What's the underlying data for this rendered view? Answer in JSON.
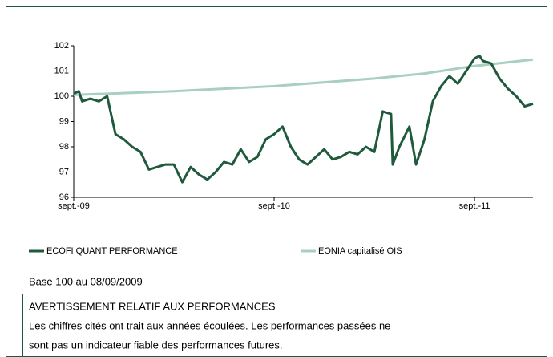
{
  "chart_data": {
    "type": "line",
    "xlim": [
      0,
      27.5
    ],
    "xticks": [
      {
        "value": 0,
        "label": "sept.-09"
      },
      {
        "value": 12,
        "label": "sept.-10"
      },
      {
        "value": 24,
        "label": "sept.-11"
      }
    ],
    "ylim": [
      96,
      102
    ],
    "yticks": [
      96,
      97,
      98,
      99,
      100,
      101,
      102
    ],
    "series": [
      {
        "name": "ECOFI QUANT PERFORMANCE",
        "color": "#1f5a3c",
        "x": [
          0,
          0.3,
          0.5,
          1,
          1.5,
          2,
          2.5,
          3,
          3.5,
          4,
          4.5,
          5,
          5.5,
          6,
          6.5,
          7,
          7.5,
          8,
          8.5,
          9,
          9.5,
          10,
          10.5,
          11,
          11.5,
          12,
          12.5,
          13,
          13.5,
          14,
          14.5,
          15,
          15.5,
          16,
          16.5,
          17,
          17.5,
          18,
          18.5,
          19,
          19.1,
          19.5,
          20.1,
          20.5,
          21,
          21.5,
          22,
          22.5,
          23,
          23.5,
          24,
          24.3,
          24.5,
          25,
          25.5,
          26,
          26.5,
          27,
          27.5
        ],
        "values": [
          100.1,
          100.2,
          99.8,
          99.9,
          99.8,
          100.0,
          98.5,
          98.3,
          98.0,
          97.8,
          97.1,
          97.2,
          97.3,
          97.3,
          96.6,
          97.2,
          96.9,
          96.7,
          97.0,
          97.4,
          97.3,
          97.9,
          97.4,
          97.6,
          98.3,
          98.5,
          98.8,
          98.0,
          97.5,
          97.3,
          97.6,
          97.9,
          97.5,
          97.6,
          97.8,
          97.7,
          98.0,
          97.8,
          99.4,
          99.3,
          97.3,
          98.0,
          98.8,
          97.3,
          98.3,
          99.8,
          100.4,
          100.8,
          100.5,
          101.0,
          101.5,
          101.6,
          101.4,
          101.3,
          100.7,
          100.3,
          100.0,
          99.6,
          99.7
        ]
      },
      {
        "name": "EONIA capitalisé OIS",
        "color": "#a8cfc0",
        "x": [
          0,
          6,
          12,
          18,
          21,
          24,
          27.5
        ],
        "values": [
          100.05,
          100.2,
          100.4,
          100.7,
          100.9,
          101.2,
          101.45
        ]
      }
    ]
  },
  "note": "Base 100 au 08/09/2009",
  "disclaimer": {
    "title": "AVERTISSEMENT RELATIF AUX PERFORMANCES",
    "lines": [
      "Les chiffres cités ont trait aux années écoulées. Les performances passées ne",
      "sont pas un indicateur fiable des performances futures."
    ]
  }
}
